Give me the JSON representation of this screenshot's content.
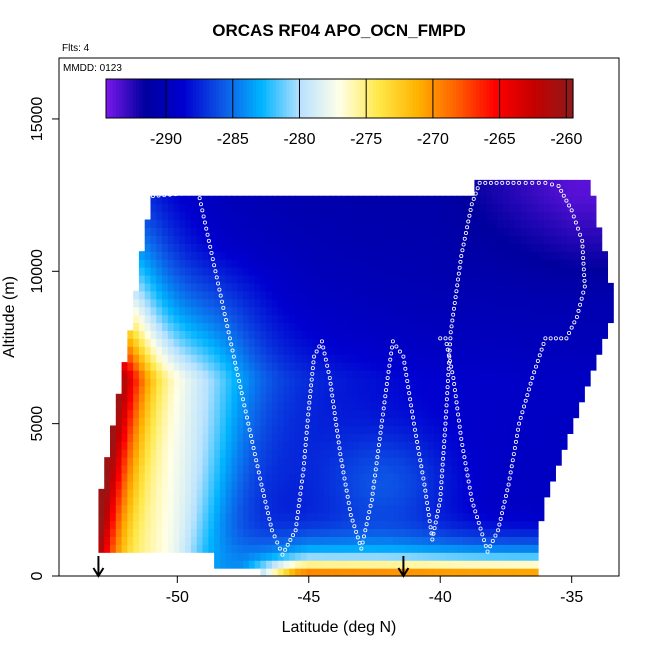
{
  "chart_data": {
    "type": "heatmap",
    "title": "ORCAS RF04 APO_OCN_FMPD",
    "flights_note": "Flts: 4",
    "date_note": "MMDD: 0123",
    "xlabel": "Latitude (deg N)",
    "ylabel": "Altitude (m)",
    "xlim": [
      -54.5,
      -33.2
    ],
    "ylim": [
      0,
      17000
    ],
    "x_ticks": [
      -50,
      -45,
      -40,
      -35
    ],
    "y_ticks": [
      0,
      5000,
      10000,
      15000
    ],
    "colorbar": {
      "range": [
        -294.5,
        -259.5
      ],
      "ticks": [
        -290,
        -285,
        -280,
        -275,
        -270,
        -265,
        -260
      ],
      "colors": [
        "#7a18ec",
        "#00009e",
        "#0000d0",
        "#0d58e6",
        "#00b4ff",
        "#b8e2ff",
        "#ffffe8",
        "#ffe94a",
        "#ffb300",
        "#ff6000",
        "#ff0000",
        "#c50000",
        "#8f1a1a"
      ]
    },
    "field": {
      "lat_range": [
        -53.0,
        -33.5
      ],
      "alt_range": [
        0,
        13000
      ],
      "description_values": {
        "upper_troposphere": -290,
        "northern_top": -293,
        "southern_boundary_layer": -262,
        "low_altitude_north": -272
      }
    },
    "flight_track": [
      [
        -52.0,
        12400
      ],
      [
        -50.5,
        12500
      ],
      [
        -49.2,
        12600
      ],
      [
        -48.8,
        11000
      ],
      [
        -48.3,
        9000
      ],
      [
        -47.8,
        7000
      ],
      [
        -47.3,
        5000
      ],
      [
        -46.8,
        3000
      ],
      [
        -46.4,
        1500
      ],
      [
        -46.0,
        700
      ],
      [
        -45.5,
        1500
      ],
      [
        -45.2,
        3500
      ],
      [
        -45.0,
        5500
      ],
      [
        -44.8,
        7200
      ],
      [
        -44.5,
        7700
      ],
      [
        -44.2,
        6500
      ],
      [
        -43.8,
        4000
      ],
      [
        -43.4,
        2000
      ],
      [
        -43.0,
        900
      ],
      [
        -42.6,
        2500
      ],
      [
        -42.3,
        4500
      ],
      [
        -42.0,
        6500
      ],
      [
        -41.8,
        7700
      ],
      [
        -41.4,
        7200
      ],
      [
        -41.0,
        5000
      ],
      [
        -40.6,
        3000
      ],
      [
        -40.3,
        1200
      ],
      [
        -40.0,
        2500
      ],
      [
        -39.8,
        5000
      ],
      [
        -39.6,
        8000
      ],
      [
        -39.2,
        10500
      ],
      [
        -38.8,
        12200
      ],
      [
        -38.5,
        12900
      ],
      [
        -37.0,
        12900
      ],
      [
        -36.0,
        12900
      ],
      [
        -35.5,
        12800
      ],
      [
        -35.0,
        12000
      ],
      [
        -34.6,
        11000
      ],
      [
        -34.5,
        9500
      ],
      [
        -34.8,
        8500
      ],
      [
        -35.2,
        7800
      ],
      [
        -36.0,
        7800
      ],
      [
        -36.5,
        6500
      ],
      [
        -37.0,
        5000
      ],
      [
        -37.4,
        3000
      ],
      [
        -37.8,
        1500
      ],
      [
        -38.2,
        800
      ],
      [
        -38.8,
        2500
      ],
      [
        -39.2,
        4500
      ],
      [
        -39.5,
        6500
      ],
      [
        -39.8,
        7800
      ],
      [
        -40.2,
        7800
      ]
    ],
    "arrows_lat": [
      -53.0,
      -41.4
    ]
  }
}
